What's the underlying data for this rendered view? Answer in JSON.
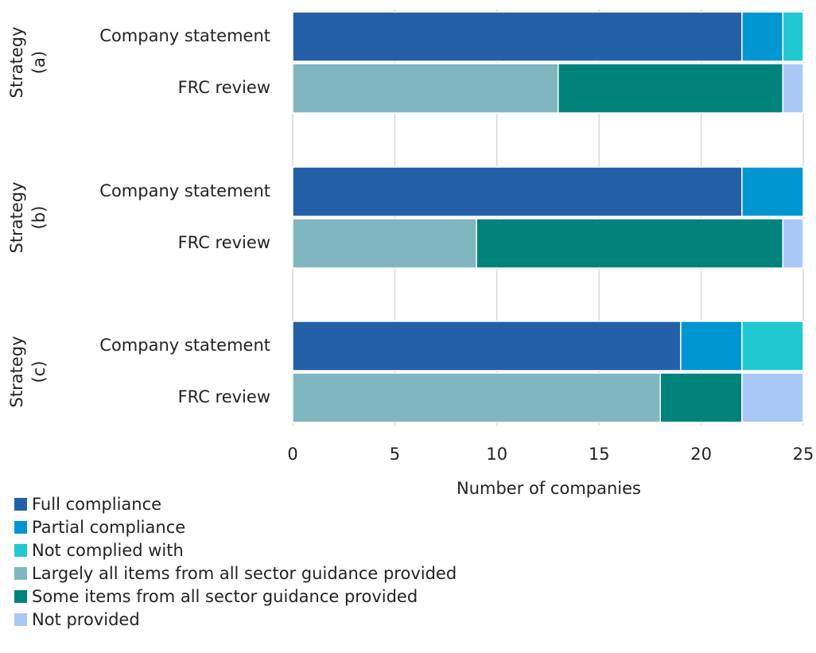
{
  "chart_data": {
    "type": "stacked_barh",
    "categories": [
      "Company statement",
      "FRC review",
      "Company statement",
      "FRC review",
      "Company statement",
      "FRC review"
    ],
    "group_labels": [
      [
        "Strategy",
        "(a)"
      ],
      [
        "Strategy",
        "(b)"
      ],
      [
        "Strategy",
        "(c)"
      ]
    ],
    "series": [
      {
        "name": "Full compliance",
        "color": "#2460a7",
        "values": [
          22,
          null,
          22,
          null,
          19,
          null
        ]
      },
      {
        "name": "Partial compliance",
        "color": "#0096d2",
        "values": [
          2,
          null,
          3,
          null,
          3,
          null
        ]
      },
      {
        "name": "Not complied with",
        "color": "#20c8d2",
        "values": [
          1,
          null,
          null,
          null,
          3,
          null
        ]
      },
      {
        "name": "Largely all items from all sector guidance provided",
        "color": "#7fb6bf",
        "values": [
          null,
          13,
          null,
          9,
          null,
          18
        ]
      },
      {
        "name": "Some items from all sector guidance provided",
        "color": "#00837a",
        "values": [
          null,
          11,
          null,
          15,
          null,
          4
        ]
      },
      {
        "name": "Not provided",
        "color": "#aac8f5",
        "values": [
          null,
          1,
          null,
          1,
          null,
          3
        ]
      }
    ],
    "xlabel": "Number of companies",
    "xlim": [
      0,
      25
    ],
    "xticks": [
      0,
      5,
      10,
      15,
      20,
      25
    ],
    "grid": true
  }
}
